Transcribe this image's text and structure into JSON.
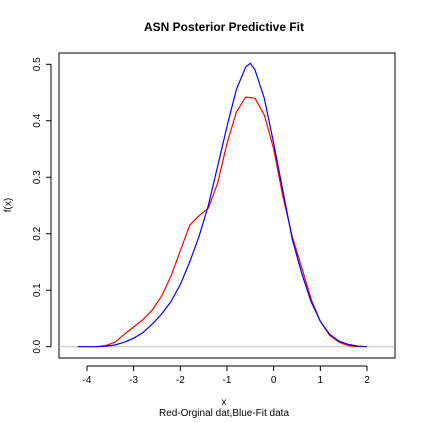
{
  "chart_data": {
    "type": "line",
    "title": "ASN Posterior Predictive Fit",
    "xlabel": "x",
    "subtitle": "Red-Orginal dat,Blue-Fit data",
    "ylabel": "f(x)",
    "xlim": [
      -4.6,
      2.6
    ],
    "ylim": [
      -0.02,
      0.52
    ],
    "x_ticks": [
      -4,
      -3,
      -2,
      -1,
      0,
      1,
      2
    ],
    "y_ticks": [
      0.0,
      0.1,
      0.2,
      0.3,
      0.4,
      0.5
    ],
    "x_tick_labels": [
      "-4",
      "-3",
      "-2",
      "-1",
      "0",
      "1",
      "2"
    ],
    "y_tick_labels": [
      "0.0",
      "0.1",
      "0.2",
      "0.3",
      "0.4",
      "0.5"
    ],
    "grid": false,
    "baseline": {
      "y": 0,
      "color": "#bebebe"
    },
    "series": [
      {
        "color": "#ff0000",
        "x": [
          -3.8,
          -3.6,
          -3.4,
          -3.2,
          -3.0,
          -2.8,
          -2.6,
          -2.4,
          -2.2,
          -2.0,
          -1.8,
          -1.6,
          -1.4,
          -1.2,
          -1.0,
          -0.8,
          -0.6,
          -0.4,
          -0.2,
          0.0,
          0.2,
          0.4,
          0.6,
          0.8,
          1.0,
          1.2,
          1.4,
          1.6,
          1.8
        ],
        "y": [
          0.0,
          0.002,
          0.008,
          0.022,
          0.035,
          0.048,
          0.065,
          0.09,
          0.125,
          0.17,
          0.215,
          0.232,
          0.245,
          0.29,
          0.36,
          0.415,
          0.442,
          0.44,
          0.41,
          0.35,
          0.265,
          0.195,
          0.14,
          0.085,
          0.045,
          0.02,
          0.008,
          0.002,
          0.0
        ]
      },
      {
        "color": "#0000ff",
        "x": [
          -4.2,
          -3.8,
          -3.6,
          -3.4,
          -3.2,
          -3.0,
          -2.8,
          -2.6,
          -2.4,
          -2.2,
          -2.0,
          -1.8,
          -1.6,
          -1.4,
          -1.2,
          -1.0,
          -0.8,
          -0.6,
          -0.5,
          -0.4,
          -0.2,
          0.0,
          0.2,
          0.4,
          0.6,
          0.8,
          1.0,
          1.2,
          1.4,
          1.6,
          1.8,
          2.0
        ],
        "y": [
          0.0,
          0.0,
          0.001,
          0.003,
          0.008,
          0.015,
          0.025,
          0.04,
          0.058,
          0.08,
          0.11,
          0.15,
          0.195,
          0.25,
          0.32,
          0.39,
          0.455,
          0.495,
          0.502,
          0.49,
          0.44,
          0.36,
          0.275,
          0.19,
          0.13,
          0.08,
          0.045,
          0.022,
          0.01,
          0.004,
          0.001,
          0.0
        ]
      }
    ]
  }
}
